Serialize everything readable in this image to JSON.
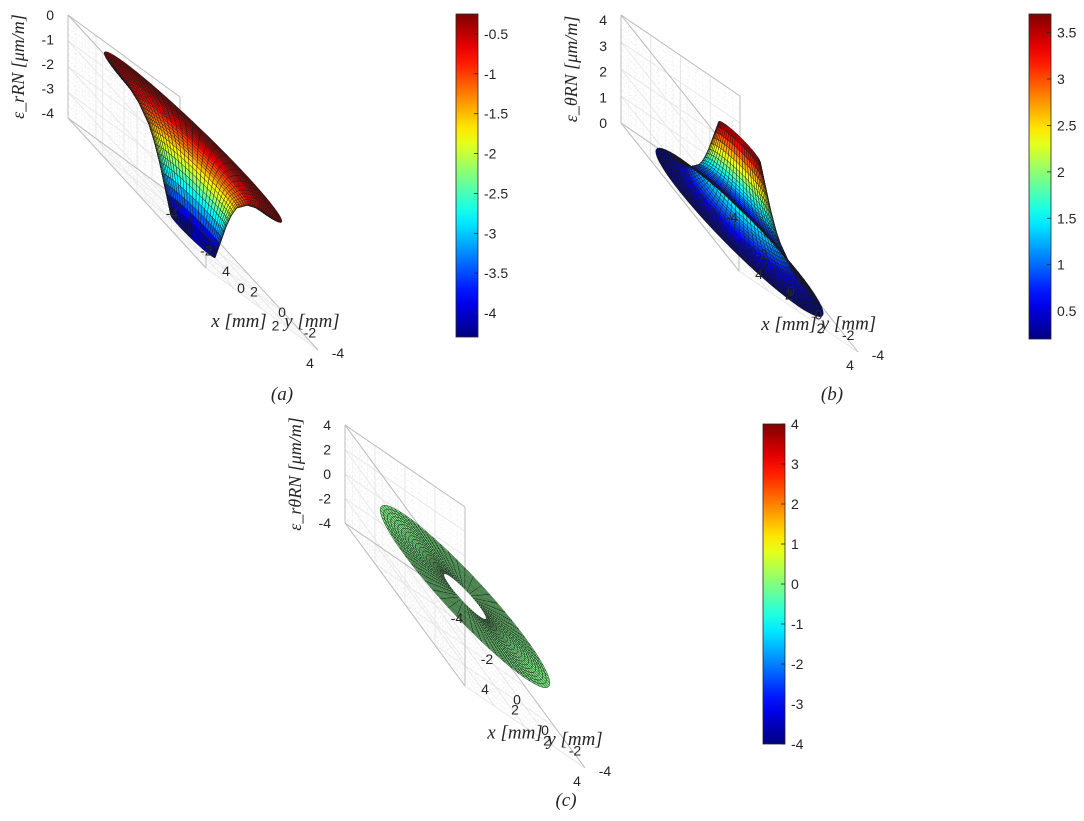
{
  "chart_data": [
    {
      "panel_label": "(a)",
      "type": "surface",
      "xlabel": "x [mm]",
      "ylabel": "y [mm]",
      "zlabel": "ε_rRN [μm/m]",
      "xticks": [
        "-4",
        "-2",
        "0",
        "2",
        "4"
      ],
      "yticks": [
        "-4",
        "-2",
        "0",
        "2",
        "4"
      ],
      "zticks": [
        "-4",
        "-3",
        "-2",
        "-1",
        "0"
      ],
      "xlim": [
        -4,
        4
      ],
      "ylim": [
        -4,
        4
      ],
      "zlim": [
        -4.2,
        0
      ],
      "grid": true,
      "colormap": "jet",
      "colorbar": {
        "ticks": [
          "-0.5",
          "-1",
          "-1.5",
          "-2",
          "-2.5",
          "-3",
          "-3.5",
          "-4"
        ],
        "range": [
          -4.3,
          -0.25
        ]
      },
      "surface": {
        "inner_radius": 1,
        "outer_radius": 4,
        "radius": [
          1,
          1.25,
          1.5,
          1.75,
          2,
          2.5,
          3,
          3.5,
          4
        ],
        "z": [
          -4.3,
          -3.45,
          -2.6,
          -1.9,
          -1.4,
          -0.85,
          -0.55,
          -0.38,
          -0.25
        ]
      }
    },
    {
      "panel_label": "(b)",
      "type": "surface",
      "xlabel": "x [mm]",
      "ylabel": "y [mm]",
      "zlabel": "ε_θRN [μm/m]",
      "xticks": [
        "-4",
        "-2",
        "0",
        "2",
        "4"
      ],
      "yticks": [
        "-4",
        "-2",
        "0",
        "2",
        "4"
      ],
      "zticks": [
        "0",
        "1",
        "2",
        "3",
        "4"
      ],
      "xlim": [
        -4,
        4
      ],
      "ylim": [
        -4,
        4
      ],
      "zlim": [
        0,
        4.2
      ],
      "grid": true,
      "colormap": "jet",
      "colorbar": {
        "ticks": [
          "3.5",
          "3",
          "2.5",
          "2",
          "1.5",
          "1",
          "0.5"
        ],
        "range": [
          0.2,
          3.7
        ]
      },
      "surface": {
        "inner_radius": 1,
        "outer_radius": 4,
        "radius": [
          1,
          1.25,
          1.5,
          1.75,
          2,
          2.5,
          3,
          3.5,
          4
        ],
        "z": [
          3.7,
          2.95,
          2.2,
          1.6,
          1.2,
          0.7,
          0.45,
          0.3,
          0.2
        ]
      }
    },
    {
      "panel_label": "(c)",
      "type": "surface",
      "xlabel": "x [mm]",
      "ylabel": "y [mm]",
      "zlabel": "ε_rθRN [μm/m]",
      "xticks": [
        "-4",
        "-2",
        "0",
        "2",
        "4"
      ],
      "yticks": [
        "-4",
        "-2",
        "0",
        "2",
        "4"
      ],
      "zticks": [
        "-4",
        "-2",
        "0",
        "2",
        "4"
      ],
      "xlim": [
        -4,
        4
      ],
      "ylim": [
        -4,
        4
      ],
      "zlim": [
        -4,
        4
      ],
      "grid": true,
      "colormap": "jet",
      "colorbar": {
        "ticks": [
          "4",
          "3",
          "2",
          "1",
          "0",
          "-1",
          "-2",
          "-3",
          "-4"
        ],
        "range": [
          -4,
          4
        ]
      },
      "surface": {
        "inner_radius": 1,
        "outer_radius": 4,
        "radius": [
          1,
          4
        ],
        "z": [
          0,
          0
        ]
      }
    }
  ]
}
